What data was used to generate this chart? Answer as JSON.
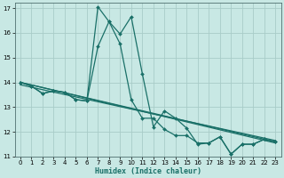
{
  "xlabel": "Humidex (Indice chaleur)",
  "xlim": [
    -0.5,
    23.5
  ],
  "ylim": [
    11,
    17.2
  ],
  "yticks": [
    11,
    12,
    13,
    14,
    15,
    16,
    17
  ],
  "xticks": [
    0,
    1,
    2,
    3,
    4,
    5,
    6,
    7,
    8,
    9,
    10,
    11,
    12,
    13,
    14,
    15,
    16,
    17,
    18,
    19,
    20,
    21,
    22,
    23
  ],
  "background_color": "#c8e8e4",
  "grid_color": "#a8ccc8",
  "line_color": "#1a7068",
  "lines": [
    {
      "x": [
        0,
        1,
        2,
        3,
        4,
        5,
        6,
        7,
        8,
        9,
        10,
        11,
        12,
        13,
        14,
        15,
        16,
        17,
        18,
        19,
        20,
        21,
        22,
        23
      ],
      "y": [
        14.0,
        13.85,
        13.55,
        13.65,
        13.6,
        13.3,
        13.25,
        17.05,
        16.45,
        15.55,
        13.3,
        12.55,
        12.55,
        12.1,
        11.85,
        11.85,
        11.55,
        11.55,
        11.8,
        11.1,
        11.5,
        11.5,
        11.7,
        11.6
      ]
    },
    {
      "x": [
        0,
        1,
        2,
        3,
        4,
        5,
        6,
        7,
        8,
        9,
        10,
        11,
        12,
        13,
        14,
        15,
        16,
        17,
        18,
        19,
        20,
        21,
        22,
        23
      ],
      "y": [
        14.0,
        13.85,
        13.55,
        13.65,
        13.6,
        13.3,
        13.25,
        15.45,
        16.45,
        15.95,
        16.65,
        14.35,
        12.2,
        12.85,
        12.55,
        12.15,
        11.5,
        11.55,
        11.8,
        11.1,
        11.5,
        11.5,
        11.7,
        11.6
      ]
    },
    {
      "x": [
        0,
        23
      ],
      "y": [
        14.0,
        11.6
      ],
      "no_markers": true
    },
    {
      "x": [
        0,
        23
      ],
      "y": [
        14.0,
        11.6
      ],
      "no_markers": true
    },
    {
      "x": [
        0,
        23
      ],
      "y": [
        14.0,
        11.6
      ],
      "no_markers": true
    }
  ]
}
